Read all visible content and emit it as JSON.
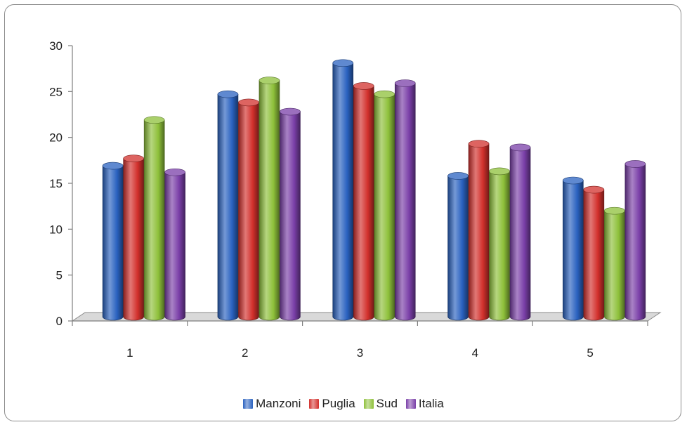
{
  "chart_data": {
    "type": "bar",
    "categories": [
      "1",
      "2",
      "3",
      "4",
      "5"
    ],
    "series": [
      {
        "name": "Manzoni",
        "color": "#2a62c0",
        "values": [
          16.6,
          24.4,
          27.8,
          15.5,
          15.0
        ]
      },
      {
        "name": "Puglia",
        "color": "#d2302c",
        "values": [
          17.4,
          23.5,
          25.3,
          19.0,
          14.0
        ]
      },
      {
        "name": "Sud",
        "color": "#8ec03a",
        "values": [
          21.6,
          25.9,
          24.4,
          16.0,
          11.7
        ]
      },
      {
        "name": "Italia",
        "color": "#7a3fa8",
        "values": [
          15.9,
          22.5,
          25.6,
          18.6,
          16.8
        ]
      }
    ],
    "yticks": [
      "0",
      "5",
      "10",
      "15",
      "20",
      "25",
      "30"
    ],
    "ylim": [
      0,
      30
    ],
    "grid": false,
    "legend_position": "bottom",
    "title": "",
    "xlabel": "",
    "ylabel": ""
  }
}
